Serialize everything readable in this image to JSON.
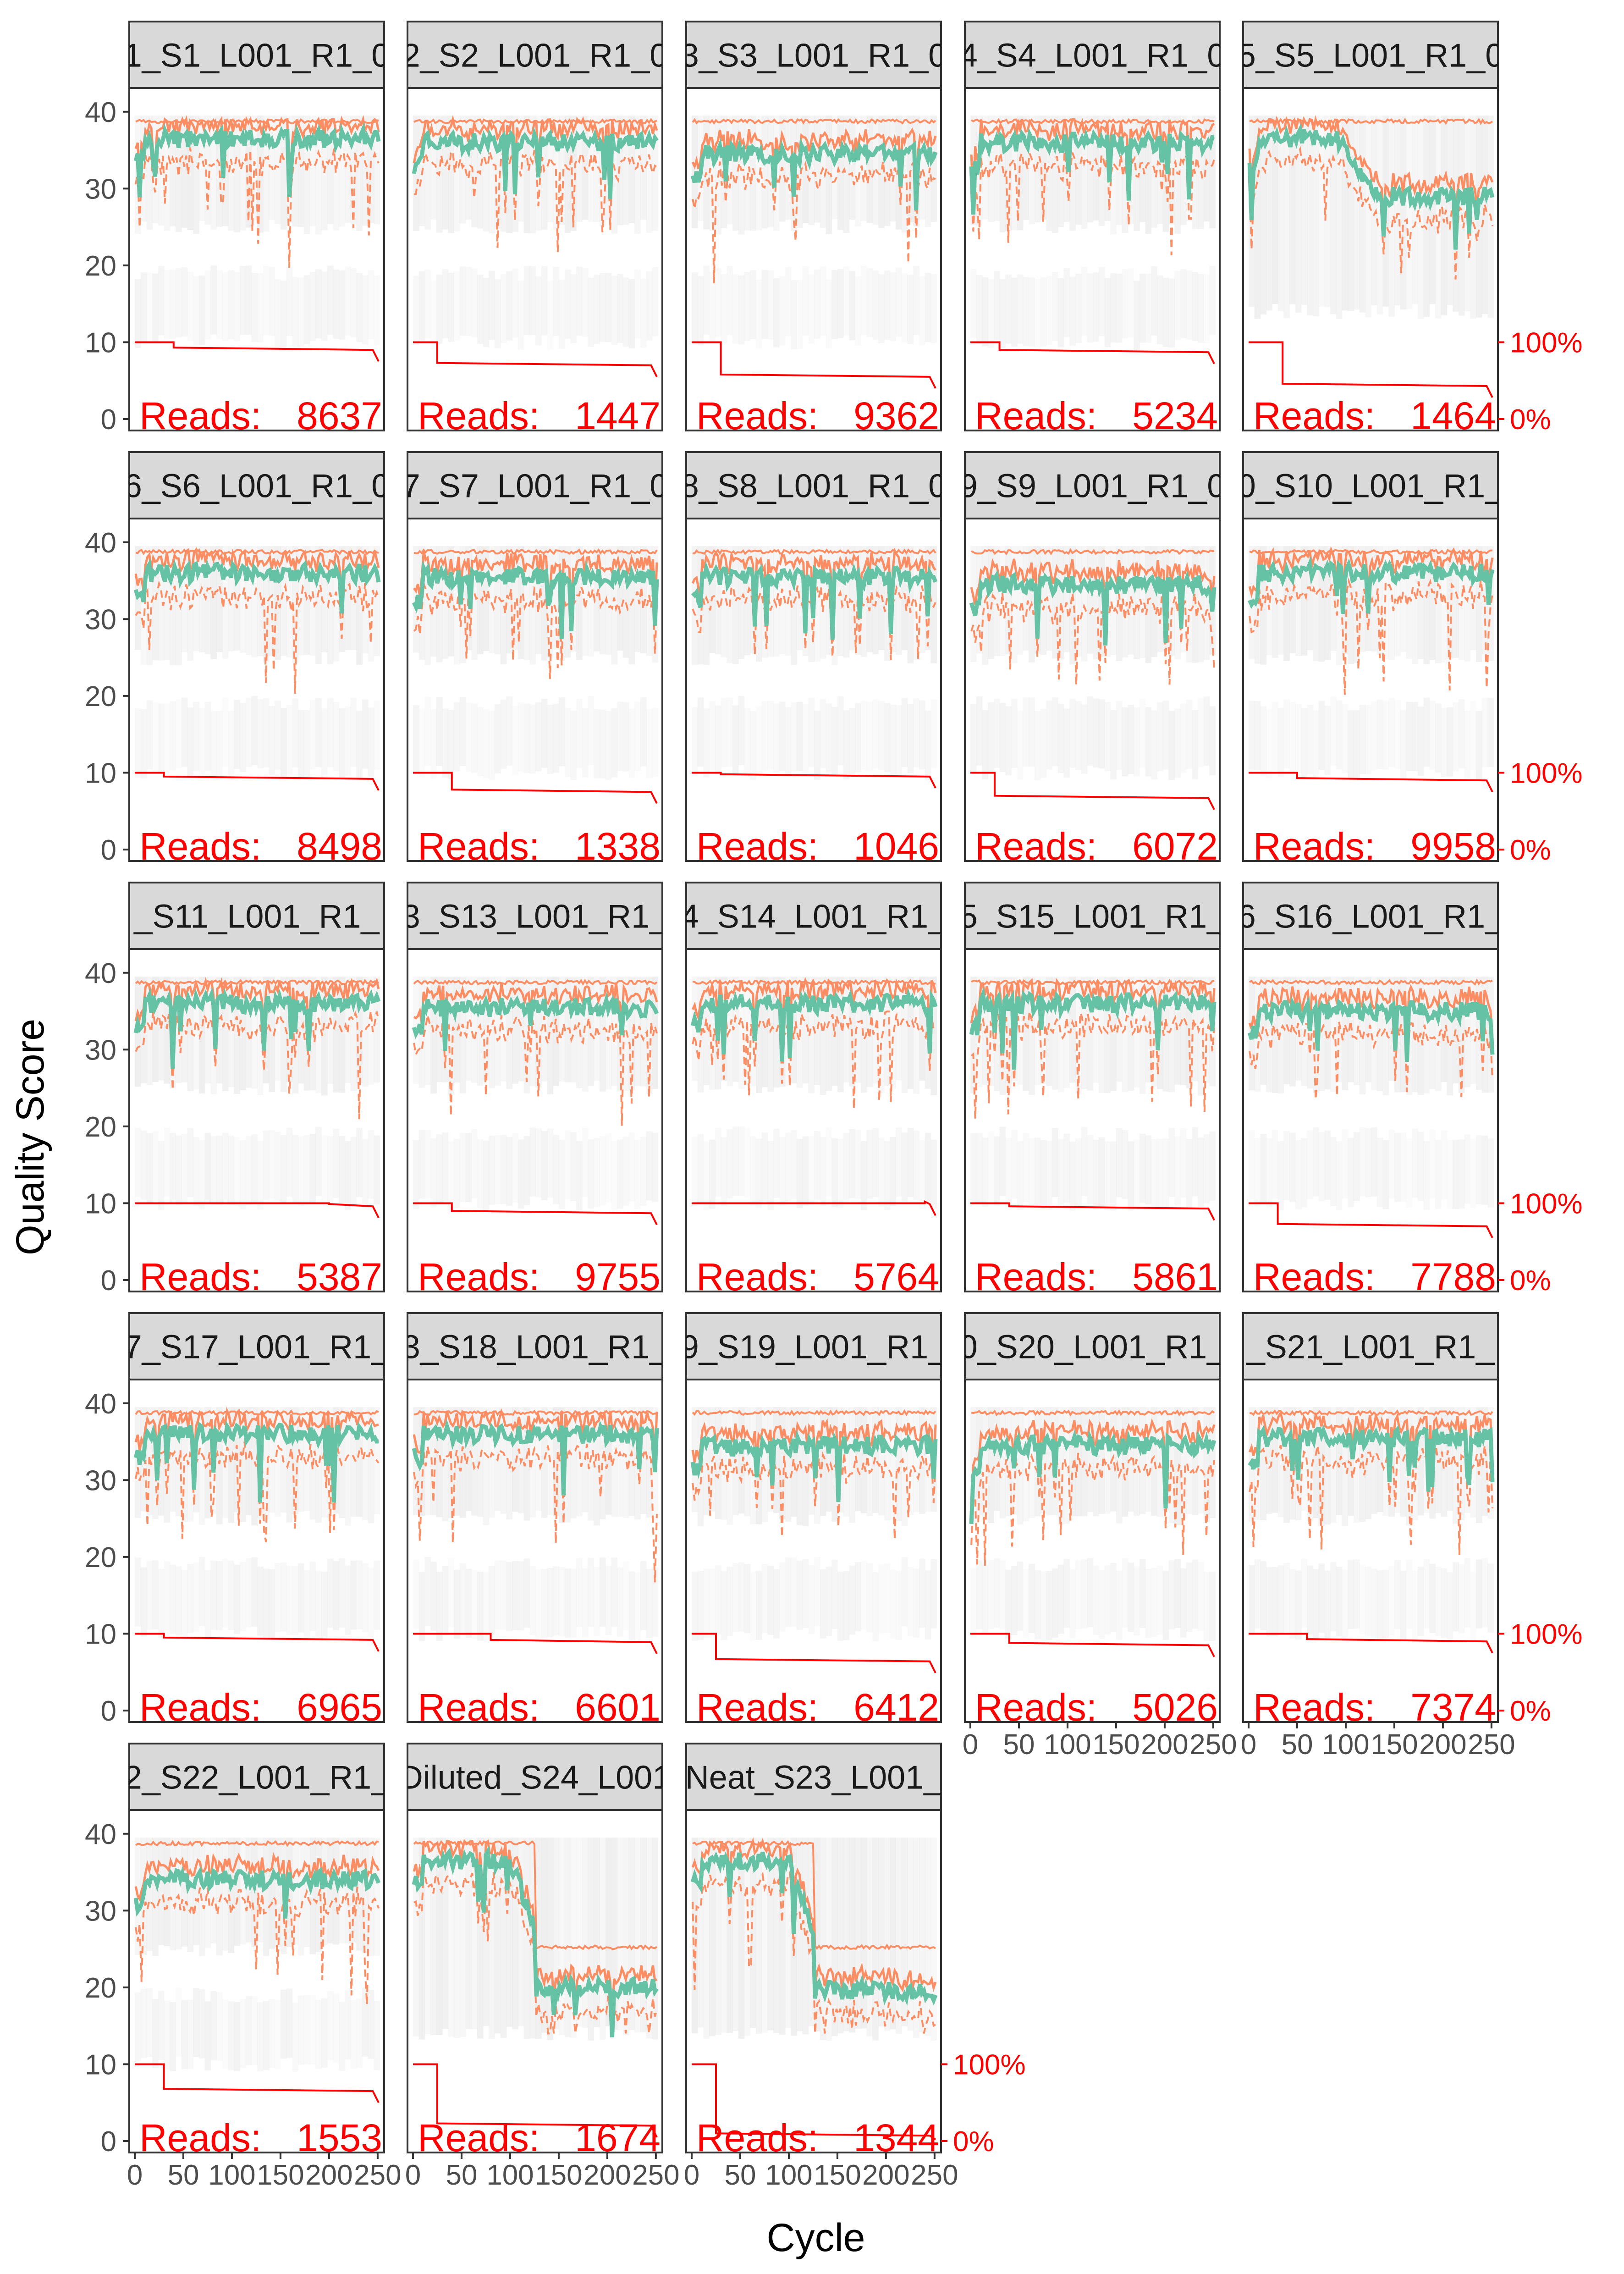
{
  "chart_data": {
    "type": "line",
    "xlabel": "Cycle",
    "ylabel": "Quality Score",
    "xlim": [
      0,
      251
    ],
    "ylim": [
      0,
      41
    ],
    "y_ticks": [
      0,
      10,
      20,
      30,
      40
    ],
    "x_ticks": [
      0,
      50,
      100,
      150,
      200,
      250
    ],
    "secondary_axis_labels": [
      "100%",
      "0%"
    ],
    "colors": {
      "mean_line": "#66c2a5",
      "quantile_lines": "#fc8d62",
      "read_fraction_line": "#ff0000",
      "heatmap_tile": "#d9d9d9",
      "strip_bg": "#d9d9d9",
      "panel_border": "#333333",
      "reads_text": "#ff0000"
    },
    "panels": [
      {
        "strip": "1_S1_L001_R1_0",
        "reads_label": "Reads:",
        "reads_value": "8637",
        "mean_level": 36.5,
        "drop_at": 40,
        "cut_to": 9.0,
        "x_tick_labels": false,
        "pct_labels": false
      },
      {
        "strip": "2_S2_L001_R1_0",
        "reads_label": "Reads:",
        "reads_value": "1447",
        "mean_level": 36.0,
        "drop_at": 25,
        "cut_to": 7.0,
        "x_tick_labels": false,
        "pct_labels": false
      },
      {
        "strip": "3_S3_L001_R1_0",
        "reads_label": "Reads:",
        "reads_value": "9362",
        "mean_level": 34.5,
        "drop_at": 30,
        "cut_to": 5.5,
        "x_tick_labels": false,
        "pct_labels": false
      },
      {
        "strip": "4_S4_L001_R1_0",
        "reads_label": "Reads:",
        "reads_value": "5234",
        "mean_level": 36.0,
        "drop_at": 30,
        "cut_to": 8.7,
        "x_tick_labels": false,
        "pct_labels": false
      },
      {
        "strip": "5_S5_L001_R1_0",
        "reads_label": "Reads:",
        "reads_value": "1464",
        "mean_level": 29.0,
        "drop_at": 35,
        "cut_to": 4.3,
        "x_tick_labels": false,
        "pct_labels": true
      },
      {
        "strip": "6_S6_L001_R1_0",
        "reads_label": "Reads:",
        "reads_value": "8498",
        "mean_level": 36.0,
        "drop_at": 30,
        "cut_to": 9.2,
        "x_tick_labels": false,
        "pct_labels": false
      },
      {
        "strip": "7_S7_L001_R1_0",
        "reads_label": "Reads:",
        "reads_value": "1338",
        "mean_level": 35.5,
        "drop_at": 40,
        "cut_to": 7.5,
        "x_tick_labels": false,
        "pct_labels": false
      },
      {
        "strip": "8_S8_L001_R1_0",
        "reads_label": "Reads:",
        "reads_value": "1046",
        "mean_level": 35.5,
        "drop_at": 30,
        "cut_to": 9.5,
        "x_tick_labels": false,
        "pct_labels": false
      },
      {
        "strip": "9_S9_L001_R1_0",
        "reads_label": "Reads:",
        "reads_value": "6072",
        "mean_level": 34.5,
        "drop_at": 25,
        "cut_to": 6.7,
        "x_tick_labels": false,
        "pct_labels": false
      },
      {
        "strip": "0_S10_L001_R1_",
        "reads_label": "Reads:",
        "reads_value": "9958",
        "mean_level": 36.0,
        "drop_at": 50,
        "cut_to": 9.0,
        "x_tick_labels": false,
        "pct_labels": true
      },
      {
        "strip": "_S11_L001_R1_",
        "reads_label": "Reads:",
        "reads_value": "5387",
        "mean_level": 36.0,
        "drop_at": 200,
        "cut_to": 9.6,
        "x_tick_labels": false,
        "pct_labels": false
      },
      {
        "strip": "3_S13_L001_R1_",
        "reads_label": "Reads:",
        "reads_value": "9755",
        "mean_level": 35.5,
        "drop_at": 40,
        "cut_to": 8.7,
        "x_tick_labels": false,
        "pct_labels": false
      },
      {
        "strip": "4_S14_L001_R1_",
        "reads_label": "Reads:",
        "reads_value": "5764",
        "mean_level": 36.0,
        "drop_at": 240,
        "cut_to": 9.9,
        "x_tick_labels": false,
        "pct_labels": false
      },
      {
        "strip": "5_S15_L001_R1_",
        "reads_label": "Reads:",
        "reads_value": "5861",
        "mean_level": 36.0,
        "drop_at": 40,
        "cut_to": 9.3,
        "x_tick_labels": false,
        "pct_labels": false
      },
      {
        "strip": "6_S16_L001_R1_",
        "reads_label": "Reads:",
        "reads_value": "7788",
        "mean_level": 35.0,
        "drop_at": 30,
        "cut_to": 7.0,
        "x_tick_labels": false,
        "pct_labels": true
      },
      {
        "strip": "7_S17_L001_R1_",
        "reads_label": "Reads:",
        "reads_value": "6965",
        "mean_level": 36.0,
        "drop_at": 30,
        "cut_to": 9.2,
        "x_tick_labels": false,
        "pct_labels": false
      },
      {
        "strip": "3_S18_L001_R1_",
        "reads_label": "Reads:",
        "reads_value": "6601",
        "mean_level": 36.0,
        "drop_at": 80,
        "cut_to": 8.9,
        "x_tick_labels": false,
        "pct_labels": false
      },
      {
        "strip": "9_S19_L001_R1_",
        "reads_label": "Reads:",
        "reads_value": "6412",
        "mean_level": 34.5,
        "drop_at": 25,
        "cut_to": 6.4,
        "x_tick_labels": false,
        "pct_labels": false
      },
      {
        "strip": "0_S20_L001_R1_",
        "reads_label": "Reads:",
        "reads_value": "5026",
        "mean_level": 34.5,
        "drop_at": 40,
        "cut_to": 8.5,
        "x_tick_labels": true,
        "pct_labels": false
      },
      {
        "strip": "_S21_L001_R1_",
        "reads_label": "Reads:",
        "reads_value": "7374",
        "mean_level": 35.5,
        "drop_at": 60,
        "cut_to": 9.0,
        "x_tick_labels": true,
        "pct_labels": true
      },
      {
        "strip": "2_S22_L001_R1_",
        "reads_label": "Reads:",
        "reads_value": "1553",
        "mean_level": 34.0,
        "drop_at": 30,
        "cut_to": 6.5,
        "x_tick_labels": true,
        "pct_labels": false
      },
      {
        "strip": "Diluted_S24_L001",
        "reads_label": "Reads:",
        "reads_value": "1674",
        "mean_level": 20.0,
        "drop_at": 25,
        "cut_to": 2.0,
        "x_tick_labels": true,
        "pct_labels": false
      },
      {
        "strip": "Neat_S23_L001_",
        "reads_label": "Reads:",
        "reads_value": "1344",
        "mean_level": 19.5,
        "drop_at": 25,
        "cut_to": 0.7,
        "x_tick_labels": true,
        "pct_labels": true
      }
    ]
  }
}
